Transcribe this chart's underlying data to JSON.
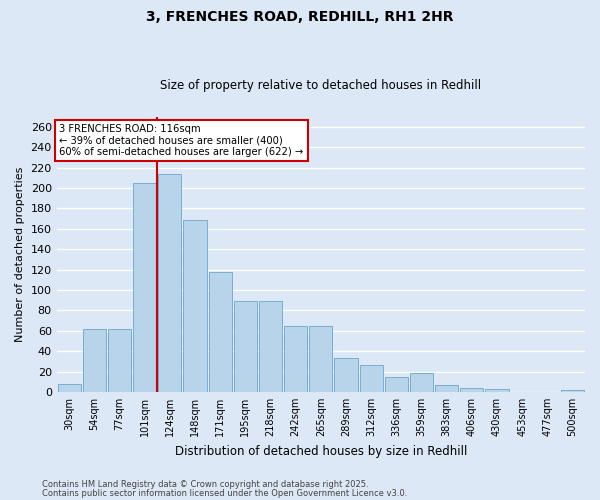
{
  "title1": "3, FRENCHES ROAD, REDHILL, RH1 2HR",
  "title2": "Size of property relative to detached houses in Redhill",
  "xlabel": "Distribution of detached houses by size in Redhill",
  "ylabel": "Number of detached properties",
  "categories": [
    "30sqm",
    "54sqm",
    "77sqm",
    "101sqm",
    "124sqm",
    "148sqm",
    "171sqm",
    "195sqm",
    "218sqm",
    "242sqm",
    "265sqm",
    "289sqm",
    "312sqm",
    "336sqm",
    "359sqm",
    "383sqm",
    "406sqm",
    "430sqm",
    "453sqm",
    "477sqm",
    "500sqm"
  ],
  "values": [
    8,
    62,
    62,
    205,
    214,
    169,
    118,
    89,
    89,
    65,
    65,
    33,
    26,
    15,
    19,
    7,
    4,
    3,
    0,
    0,
    2
  ],
  "bar_color": "#b8d4ea",
  "bar_edge_color": "#7aaecf",
  "bg_color": "#dce8f5",
  "grid_color": "#ffffff",
  "vline_color": "#cc0000",
  "vline_pos": 3.5,
  "annotation_title": "3 FRENCHES ROAD: 116sqm",
  "annotation_line1": "← 39% of detached houses are smaller (400)",
  "annotation_line2": "60% of semi-detached houses are larger (622) →",
  "annotation_box_color": "#ffffff",
  "annotation_border_color": "#cc0000",
  "footnote1": "Contains HM Land Registry data © Crown copyright and database right 2025.",
  "footnote2": "Contains public sector information licensed under the Open Government Licence v3.0.",
  "ylim": [
    0,
    270
  ],
  "yticks": [
    0,
    20,
    40,
    60,
    80,
    100,
    120,
    140,
    160,
    180,
    200,
    220,
    240,
    260
  ]
}
